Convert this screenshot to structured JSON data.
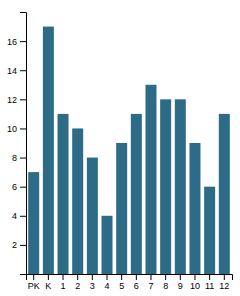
{
  "chart_data": {
    "type": "bar",
    "categories": [
      "PK",
      "K",
      "1",
      "2",
      "3",
      "4",
      "5",
      "6",
      "7",
      "8",
      "9",
      "10",
      "11",
      "12"
    ],
    "values": [
      7,
      17,
      11,
      10,
      8,
      4,
      9,
      11,
      13,
      12,
      12,
      9,
      6,
      11
    ],
    "color": "#2e6b87",
    "ylim": [
      0,
      18
    ],
    "yticks": [
      2,
      4,
      6,
      8,
      10,
      12,
      14,
      16
    ],
    "grid": false
  }
}
